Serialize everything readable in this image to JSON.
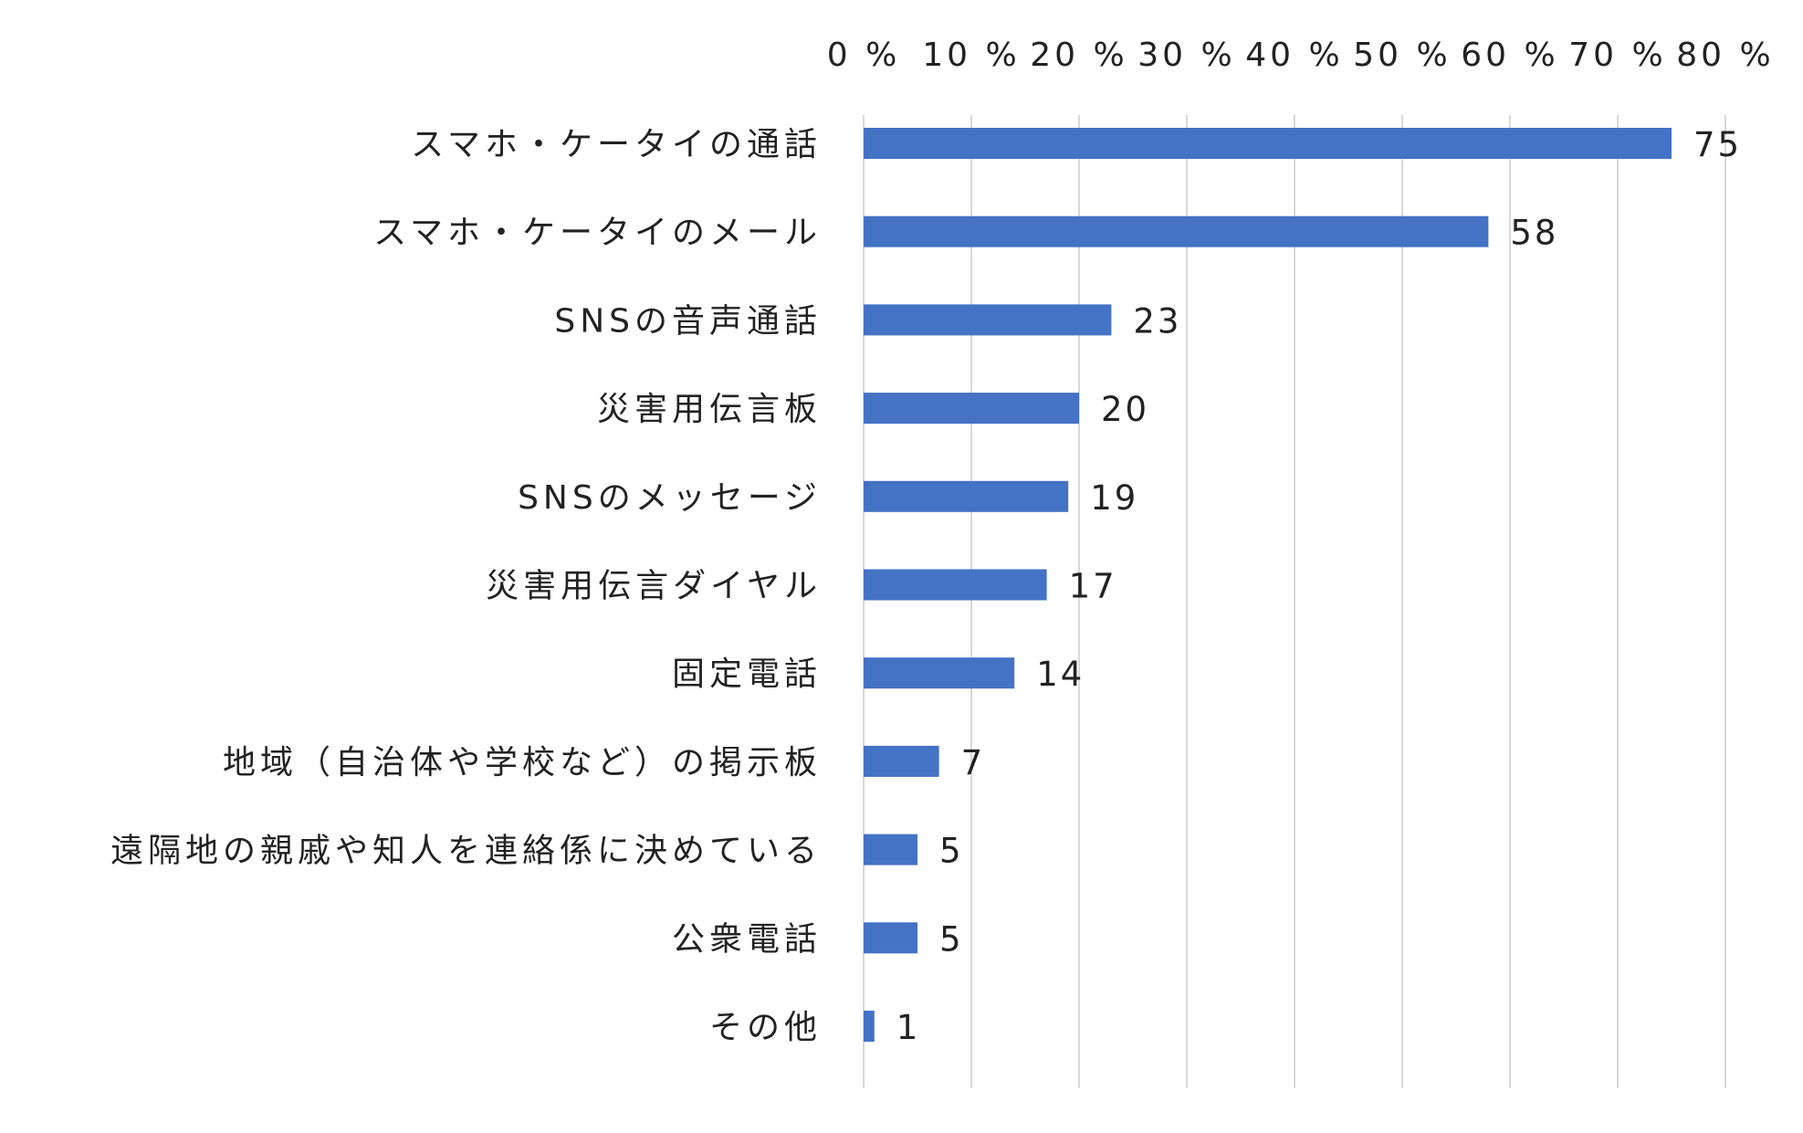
{
  "chart_data": {
    "type": "bar",
    "orientation": "horizontal",
    "categories": [
      "スマホ・ケータイの通話",
      "スマホ・ケータイのメール",
      "SNSの音声通話",
      "災害用伝言板",
      "SNSのメッセージ",
      "災害用伝言ダイヤル",
      "固定電話",
      "地域（自治体や学校など）の掲示板",
      "遠隔地の親戚や知人を連絡係に決めている",
      "公衆電話",
      "その他"
    ],
    "values": [
      75,
      58,
      23,
      20,
      19,
      17,
      14,
      7,
      5,
      5,
      1
    ],
    "value_labels": [
      "75",
      "58",
      "23",
      "20",
      "19",
      "17",
      "14",
      "7",
      "5",
      "5",
      "1"
    ],
    "xlim": [
      0,
      80
    ],
    "x_ticks": [
      0,
      10,
      20,
      30,
      40,
      50,
      60,
      70,
      80
    ],
    "x_tick_labels": [
      "0 %",
      "10 %",
      "20 %",
      "30 %",
      "40 %",
      "50 %",
      "60 %",
      "70 %",
      "80 %"
    ],
    "x_axis_position": "top",
    "grid": true,
    "legend": "none",
    "title": "",
    "xlabel": "",
    "ylabel": "",
    "colors": {
      "bar": "#4472c4",
      "grid": "#d9d9d9",
      "text": "#222222"
    }
  }
}
